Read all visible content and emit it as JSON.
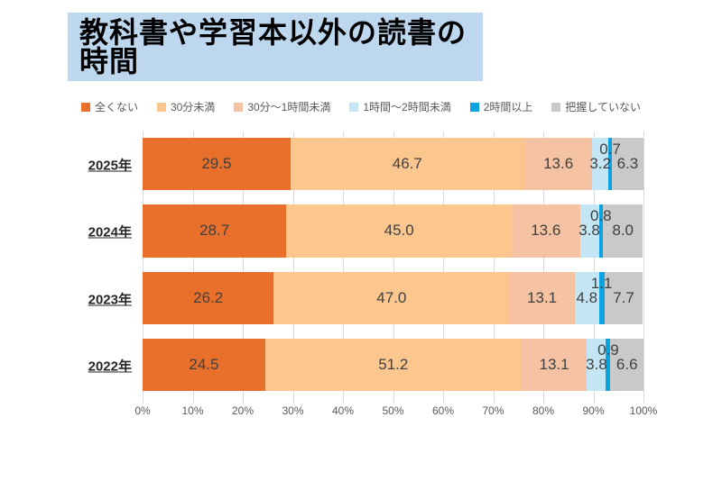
{
  "banner": {
    "background": "#BDD7EE"
  },
  "chart_data": {
    "type": "bar",
    "stacked": true,
    "orientation": "horizontal",
    "title": "教科書や学習本以外の読書の時間",
    "categories": [
      "2025年",
      "2024年",
      "2023年",
      "2022年"
    ],
    "series": [
      {
        "name": "全くない",
        "color": "#E8702A",
        "values": [
          29.5,
          28.7,
          26.2,
          24.5
        ]
      },
      {
        "name": "30分未満",
        "color": "#FCC78F",
        "values": [
          46.7,
          45.0,
          47.0,
          51.2
        ]
      },
      {
        "name": "30分～1時間未満",
        "color": "#F5C3A3",
        "values": [
          13.6,
          13.6,
          13.1,
          13.1
        ]
      },
      {
        "name": "1時間～2時間未満",
        "color": "#C3E5F4",
        "values": [
          3.2,
          3.8,
          4.8,
          3.8
        ]
      },
      {
        "name": "2時間以上",
        "color": "#0AA2E0",
        "values": [
          0.7,
          0.8,
          1.1,
          0.9
        ]
      },
      {
        "name": "把握していない",
        "color": "#C9C9C9",
        "values": [
          6.3,
          8.0,
          7.7,
          6.6
        ]
      }
    ],
    "x_ticks": [
      "0%",
      "10%",
      "20%",
      "30%",
      "40%",
      "50%",
      "60%",
      "70%",
      "80%",
      "90%",
      "100%"
    ],
    "xlim": [
      0,
      100
    ],
    "grid": true,
    "gridline_color": "#D9D9D9",
    "legend_position": "top",
    "value_label_color": "#404040",
    "axis_label_color": "#595959"
  }
}
